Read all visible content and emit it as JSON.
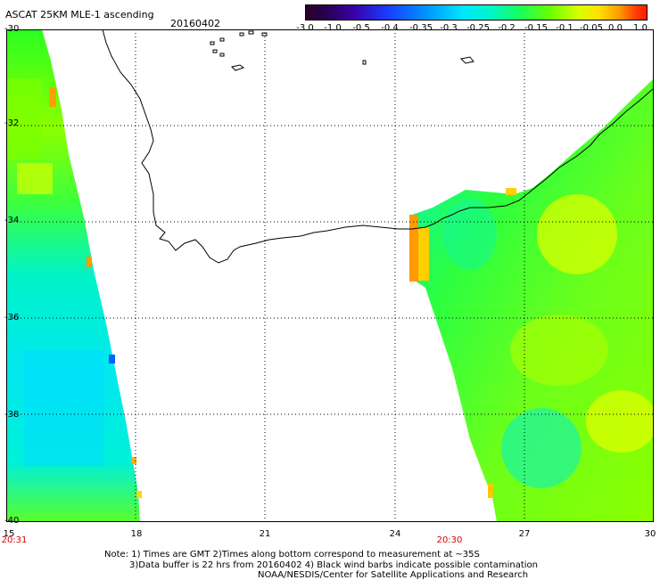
{
  "header": {
    "title": "ASCAT 25KM MLE-1 ascending",
    "date": "20160402"
  },
  "colorbar": {
    "ticks": [
      "-3.0",
      "-1.0",
      "-0.5",
      "-0.4",
      "-0.35",
      "-0.3",
      "-0.25",
      "-0.2",
      "-0.15",
      "-0.1",
      "-0.05",
      "0.0",
      "1.0"
    ]
  },
  "axes": {
    "lat_labels": [
      "-30",
      "-32",
      "-34",
      "-36",
      "-38",
      "-40"
    ],
    "lon_labels": [
      "15",
      "18",
      "21",
      "24",
      "27",
      "30"
    ]
  },
  "pass_times": {
    "left": "20:31",
    "right": "20:30"
  },
  "notes": {
    "line1": "Note: 1) Times are GMT 2)Times along bottom correspond to measurement at ~35S",
    "line2": "3)Data buffer is 22 hrs from 20160402 4) Black wind barbs indicate possible contamination",
    "credit": "NOAA/NESDIS/Center for Satellite Applications and Research"
  }
}
